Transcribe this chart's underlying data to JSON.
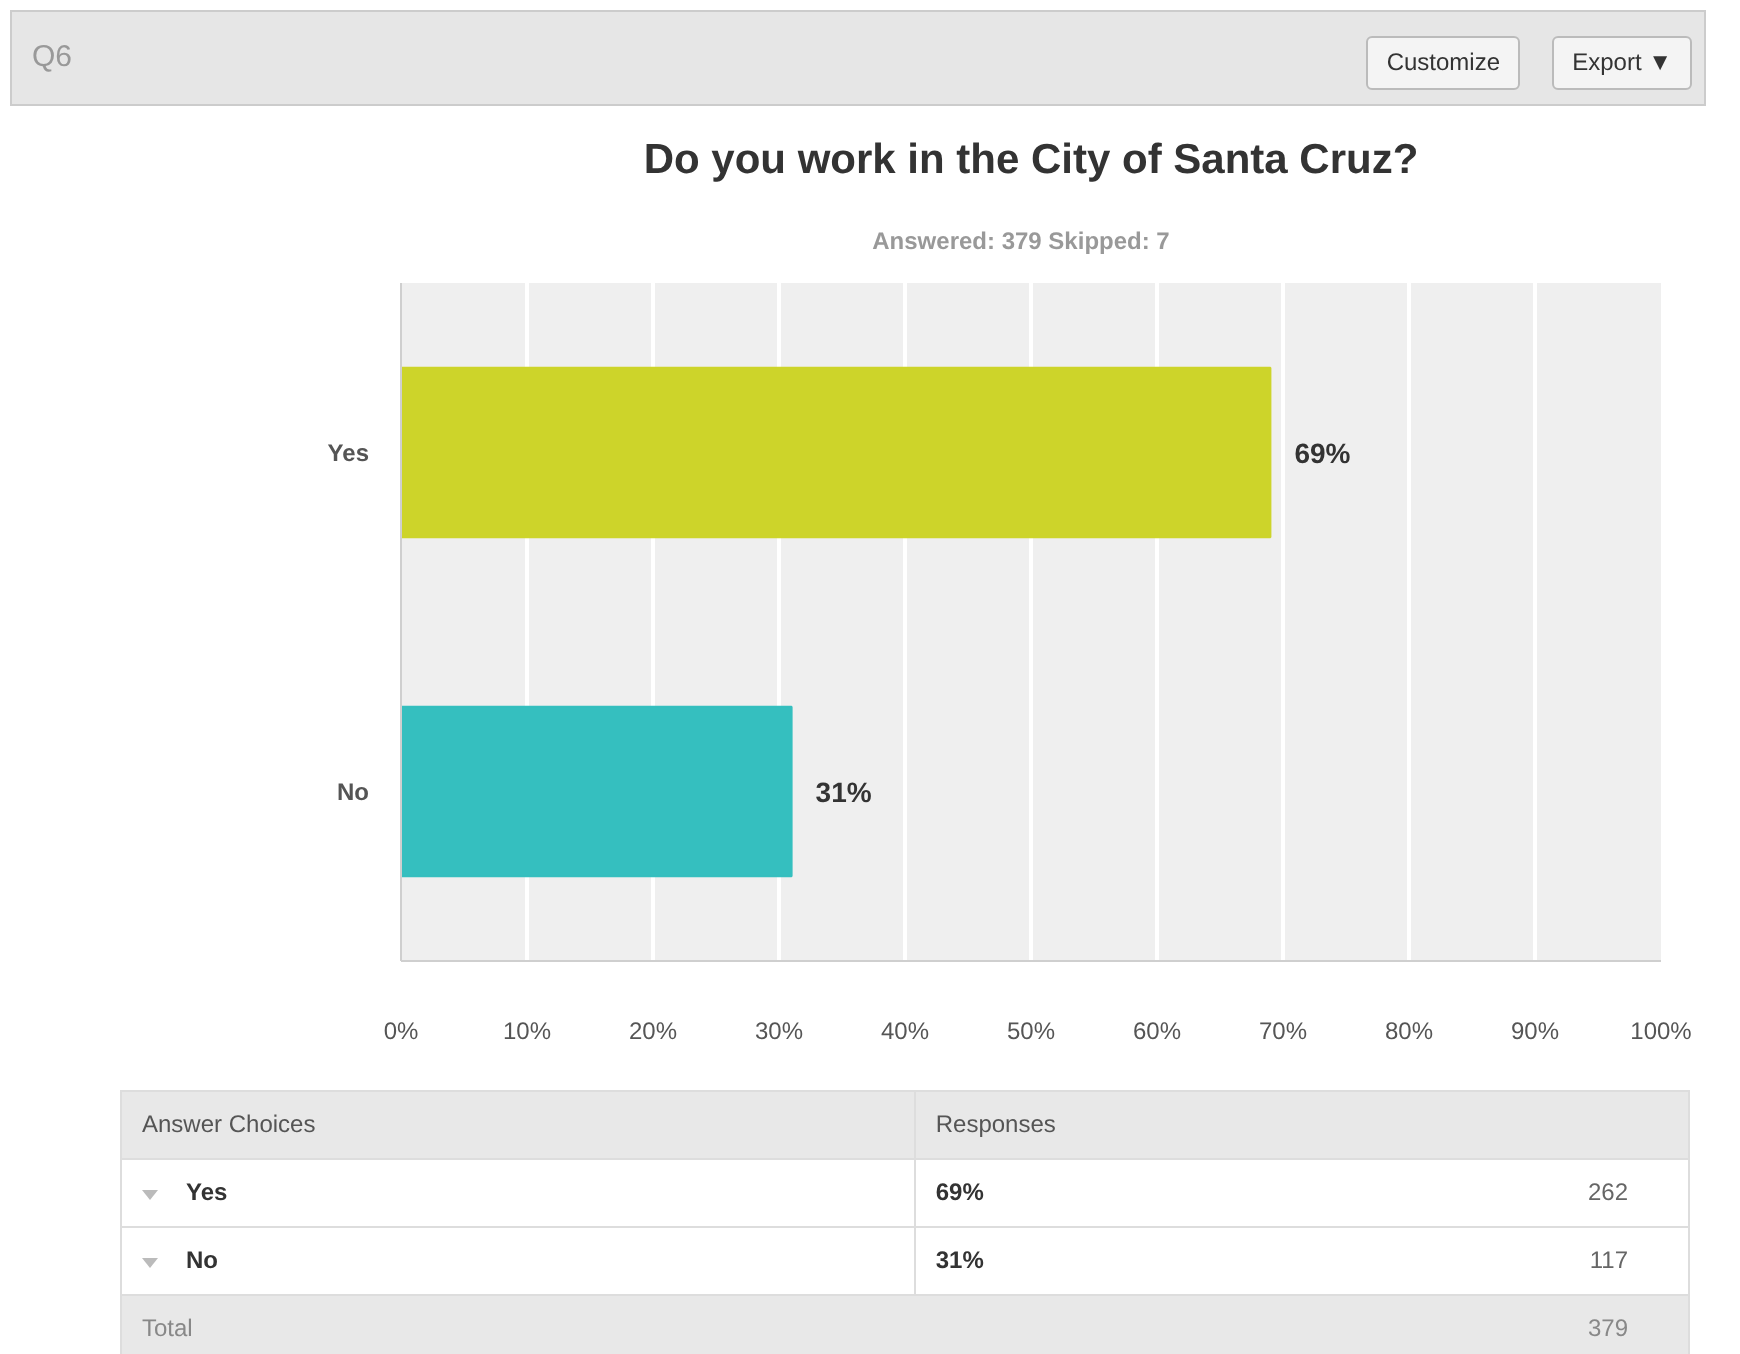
{
  "chart_data": {
    "type": "bar",
    "orientation": "horizontal",
    "title": "Do you work in the City of Santa Cruz?",
    "subtitle": "Answered: 379    Skipped: 7",
    "categories": [
      "Yes",
      "No"
    ],
    "values": [
      69,
      31
    ],
    "colors": [
      "#cdd42a",
      "#35bfbf"
    ],
    "value_labels": [
      "69%",
      "31%"
    ],
    "xlim": [
      0,
      100
    ],
    "xticks": [
      {
        "value": 0,
        "label": "0%"
      },
      {
        "value": 10,
        "label": "10%"
      },
      {
        "value": 20,
        "label": "20%"
      },
      {
        "value": 30,
        "label": "30%"
      },
      {
        "value": 40,
        "label": "40%"
      },
      {
        "value": 50,
        "label": "50%"
      },
      {
        "value": 60,
        "label": "60%"
      },
      {
        "value": 70,
        "label": "70%"
      },
      {
        "value": 80,
        "label": "80%"
      },
      {
        "value": 90,
        "label": "90%"
      },
      {
        "value": 100,
        "label": "100%"
      }
    ],
    "grid": "x",
    "annotations": [
      "Q6",
      "Customize",
      "Export ▼",
      "Answer Choices",
      "Responses",
      "262",
      "117",
      "Total",
      "379"
    ]
  }
}
